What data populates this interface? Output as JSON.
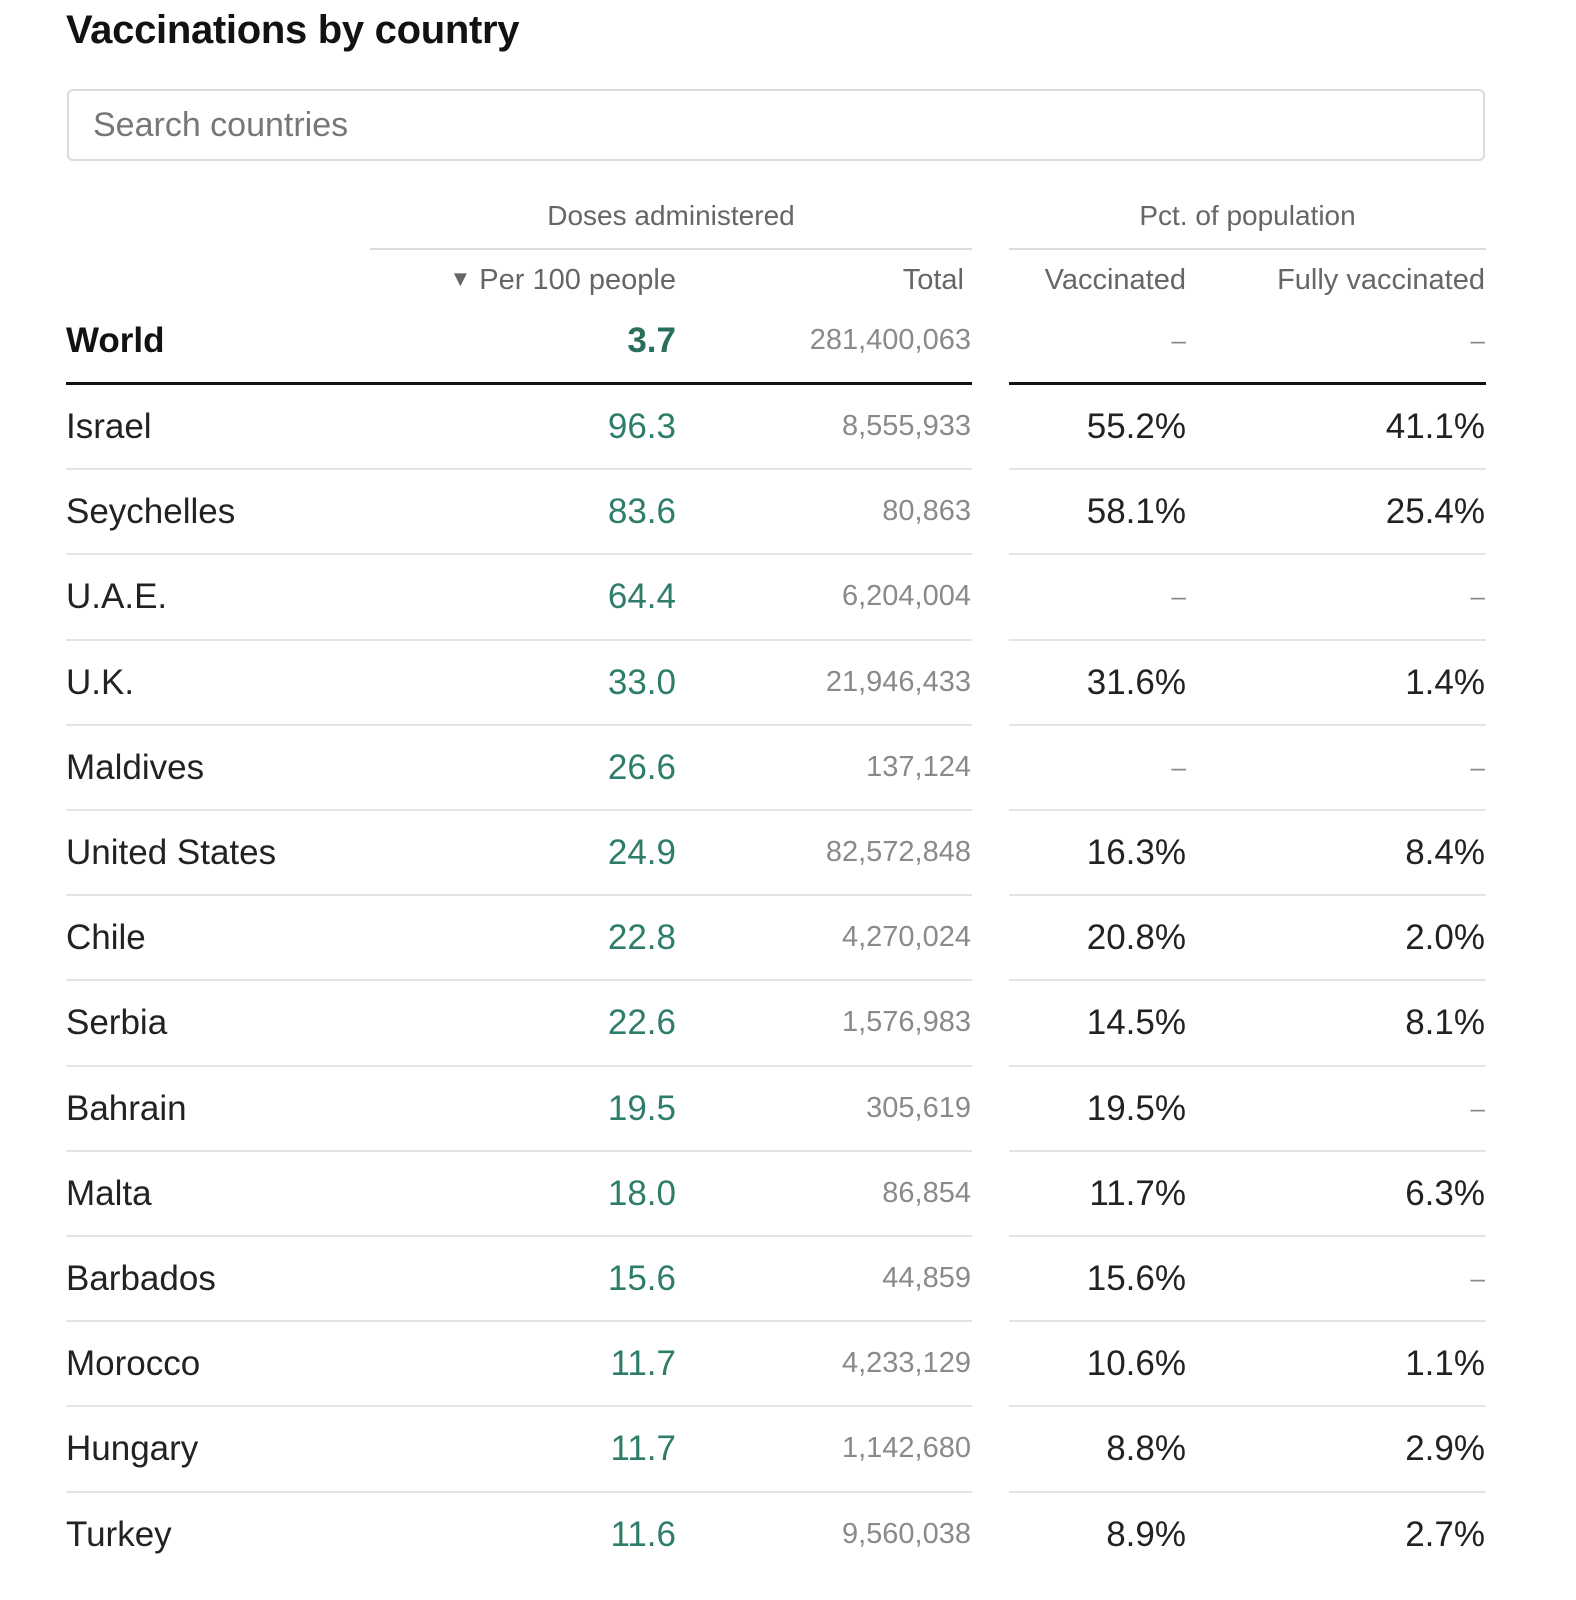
{
  "title": "Vaccinations by country",
  "search": {
    "placeholder": "Search countries",
    "value": ""
  },
  "groups": {
    "doses": "Doses administered",
    "population": "Pct. of population"
  },
  "columns": {
    "per100": "Per 100 people",
    "per100_sort_icon": "triangle-down-icon",
    "sort_arrow": "▼",
    "total": "Total",
    "vaccinated": "Vaccinated",
    "fully": "Fully vaccinated"
  },
  "colors": {
    "per100_text": "#2e7d6b",
    "muted_text": "#8a8a8a",
    "rule": "#121212"
  },
  "world": {
    "name": "World",
    "per100": "3.7",
    "total": "281,400,063",
    "vaccinated": "–",
    "fully": "–"
  },
  "rows": [
    {
      "name": "Israel",
      "per100": "96.3",
      "total": "8,555,933",
      "vaccinated": "55.2%",
      "fully": "41.1%"
    },
    {
      "name": "Seychelles",
      "per100": "83.6",
      "total": "80,863",
      "vaccinated": "58.1%",
      "fully": "25.4%"
    },
    {
      "name": "U.A.E.",
      "per100": "64.4",
      "total": "6,204,004",
      "vaccinated": "–",
      "fully": "–"
    },
    {
      "name": "U.K.",
      "per100": "33.0",
      "total": "21,946,433",
      "vaccinated": "31.6%",
      "fully": "1.4%"
    },
    {
      "name": "Maldives",
      "per100": "26.6",
      "total": "137,124",
      "vaccinated": "–",
      "fully": "–"
    },
    {
      "name": "United States",
      "per100": "24.9",
      "total": "82,572,848",
      "vaccinated": "16.3%",
      "fully": "8.4%"
    },
    {
      "name": "Chile",
      "per100": "22.8",
      "total": "4,270,024",
      "vaccinated": "20.8%",
      "fully": "2.0%"
    },
    {
      "name": "Serbia",
      "per100": "22.6",
      "total": "1,576,983",
      "vaccinated": "14.5%",
      "fully": "8.1%"
    },
    {
      "name": "Bahrain",
      "per100": "19.5",
      "total": "305,619",
      "vaccinated": "19.5%",
      "fully": "–"
    },
    {
      "name": "Malta",
      "per100": "18.0",
      "total": "86,854",
      "vaccinated": "11.7%",
      "fully": "6.3%"
    },
    {
      "name": "Barbados",
      "per100": "15.6",
      "total": "44,859",
      "vaccinated": "15.6%",
      "fully": "–"
    },
    {
      "name": "Morocco",
      "per100": "11.7",
      "total": "4,233,129",
      "vaccinated": "10.6%",
      "fully": "1.1%"
    },
    {
      "name": "Hungary",
      "per100": "11.7",
      "total": "1,142,680",
      "vaccinated": "8.8%",
      "fully": "2.9%"
    },
    {
      "name": "Turkey",
      "per100": "11.6",
      "total": "9,560,038",
      "vaccinated": "8.9%",
      "fully": "2.7%"
    }
  ]
}
